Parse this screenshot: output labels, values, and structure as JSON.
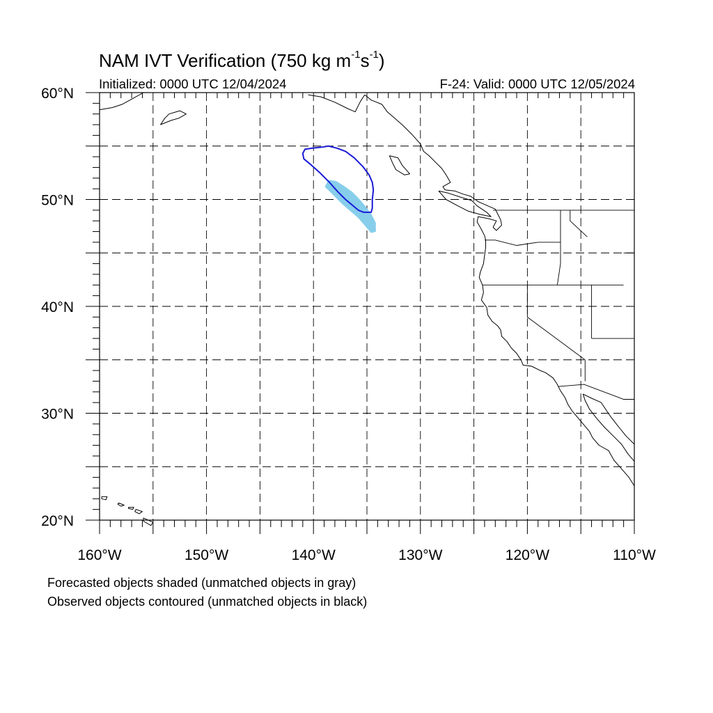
{
  "title": {
    "main": "NAM IVT Verification (750 kg m",
    "exp1": "-1",
    "mid": "s",
    "exp2": "-1",
    "close": ")"
  },
  "subtitle": {
    "left": "Initialized: 0000 UTC 12/04/2024",
    "right": "F-24: Valid: 0000 UTC 12/05/2024"
  },
  "map": {
    "lon_range": [
      -160,
      -110
    ],
    "lat_range": [
      20,
      60
    ],
    "grid_lon_step": 5,
    "grid_lat_step": 5,
    "lon_labels": [
      "160°W",
      "150°W",
      "140°W",
      "130°W",
      "120°W",
      "110°W"
    ],
    "lat_labels": [
      "20°N",
      "30°N",
      "40°N",
      "50°N",
      "60°N"
    ],
    "forecast_fill_color": "#87ceeb",
    "observed_contour_color": "#1a1ad6"
  },
  "notes": [
    "Forecasted objects shaded (unmatched objects in gray)",
    "Observed objects contoured (unmatched objects in black)"
  ],
  "objects": {
    "forecast_shaded": [
      [
        -138.6,
        51.8
      ],
      [
        -137.9,
        51.7
      ],
      [
        -137.1,
        51.2
      ],
      [
        -136.4,
        50.7
      ],
      [
        -135.8,
        50.1
      ],
      [
        -135.2,
        49.4
      ],
      [
        -134.6,
        48.6
      ],
      [
        -134.2,
        47.8
      ],
      [
        -134.2,
        47.0
      ],
      [
        -134.6,
        46.9
      ],
      [
        -135.2,
        47.6
      ],
      [
        -135.8,
        48.3
      ],
      [
        -136.5,
        48.9
      ],
      [
        -137.3,
        49.6
      ],
      [
        -138.2,
        50.5
      ],
      [
        -138.9,
        51.2
      ]
    ],
    "observed_contour": [
      [
        -141.0,
        54.3
      ],
      [
        -140.8,
        54.7
      ],
      [
        -140.1,
        54.8
      ],
      [
        -139.2,
        54.9
      ],
      [
        -138.6,
        55.0
      ],
      [
        -137.8,
        54.8
      ],
      [
        -137.0,
        54.5
      ],
      [
        -136.2,
        53.9
      ],
      [
        -135.4,
        53.1
      ],
      [
        -134.8,
        52.3
      ],
      [
        -134.5,
        51.6
      ],
      [
        -134.4,
        50.9
      ],
      [
        -134.5,
        50.0
      ],
      [
        -134.5,
        49.2
      ],
      [
        -134.6,
        48.8
      ],
      [
        -135.3,
        48.8
      ],
      [
        -135.8,
        49.0
      ],
      [
        -136.4,
        49.5
      ],
      [
        -137.0,
        50.0
      ],
      [
        -137.7,
        50.7
      ],
      [
        -138.5,
        51.6
      ],
      [
        -139.4,
        52.5
      ],
      [
        -140.3,
        53.3
      ],
      [
        -140.9,
        53.8
      ]
    ]
  },
  "geography": {
    "coast_north_america": [
      [
        -135.2,
        59.8
      ],
      [
        -134.6,
        59.3
      ],
      [
        -133.6,
        58.9
      ],
      [
        -133.1,
        58.2
      ],
      [
        -132.4,
        57.6
      ],
      [
        -131.6,
        56.9
      ],
      [
        -130.8,
        56.1
      ],
      [
        -130.0,
        55.2
      ],
      [
        -129.7,
        54.5
      ],
      [
        -129.2,
        54.1
      ],
      [
        -128.6,
        53.5
      ],
      [
        -128.0,
        52.9
      ],
      [
        -127.6,
        52.3
      ],
      [
        -127.2,
        51.6
      ],
      [
        -127.9,
        51.2
      ],
      [
        -127.7,
        50.9
      ],
      [
        -126.8,
        50.8
      ],
      [
        -126.0,
        50.5
      ],
      [
        -125.3,
        50.3
      ],
      [
        -124.6,
        49.8
      ],
      [
        -123.7,
        49.4
      ],
      [
        -123.0,
        49.1
      ],
      [
        -122.8,
        48.7
      ],
      [
        -122.5,
        48.1
      ],
      [
        -122.4,
        47.6
      ],
      [
        -122.9,
        47.1
      ],
      [
        -123.2,
        47.4
      ],
      [
        -122.9,
        48.0
      ],
      [
        -123.6,
        48.2
      ],
      [
        -124.6,
        48.4
      ],
      [
        -124.7,
        47.9
      ],
      [
        -124.3,
        47.2
      ],
      [
        -124.0,
        46.6
      ],
      [
        -123.9,
        46.2
      ],
      [
        -123.9,
        45.5
      ],
      [
        -124.0,
        44.8
      ],
      [
        -124.1,
        44.0
      ],
      [
        -124.4,
        43.2
      ],
      [
        -124.5,
        42.7
      ],
      [
        -124.2,
        42.0
      ],
      [
        -124.1,
        41.3
      ],
      [
        -124.3,
        40.6
      ],
      [
        -123.8,
        39.9
      ],
      [
        -123.7,
        39.2
      ],
      [
        -123.3,
        38.6
      ],
      [
        -122.8,
        38.2
      ],
      [
        -122.5,
        37.8
      ],
      [
        -122.4,
        37.2
      ],
      [
        -121.9,
        36.7
      ],
      [
        -121.5,
        36.1
      ],
      [
        -121.0,
        35.6
      ],
      [
        -120.6,
        35.0
      ],
      [
        -120.4,
        34.5
      ],
      [
        -119.6,
        34.4
      ],
      [
        -118.8,
        34.0
      ],
      [
        -118.3,
        33.8
      ],
      [
        -117.6,
        33.3
      ],
      [
        -117.2,
        32.7
      ],
      [
        -116.9,
        32.1
      ],
      [
        -116.5,
        31.5
      ],
      [
        -116.2,
        30.8
      ],
      [
        -115.8,
        30.2
      ],
      [
        -115.3,
        29.6
      ],
      [
        -114.7,
        28.9
      ],
      [
        -114.2,
        28.3
      ],
      [
        -113.9,
        27.7
      ],
      [
        -113.3,
        27.0
      ],
      [
        -112.4,
        26.5
      ],
      [
        -111.9,
        25.6
      ],
      [
        -111.2,
        24.8
      ],
      [
        -110.5,
        24.0
      ],
      [
        -110.0,
        23.2
      ]
    ],
    "coast_gulf_of_california": [
      [
        -114.8,
        31.8
      ],
      [
        -114.6,
        31.2
      ],
      [
        -114.2,
        30.4
      ],
      [
        -113.5,
        29.5
      ],
      [
        -112.8,
        28.7
      ],
      [
        -112.0,
        27.9
      ],
      [
        -111.2,
        27.1
      ],
      [
        -110.6,
        26.2
      ],
      [
        -110.0,
        25.5
      ]
    ],
    "coast_mainland_mexico": [
      [
        -114.8,
        31.8
      ],
      [
        -114.0,
        31.4
      ],
      [
        -113.1,
        31.0
      ],
      [
        -112.3,
        29.8
      ],
      [
        -111.6,
        28.9
      ],
      [
        -110.8,
        27.9
      ],
      [
        -110.0,
        27.1
      ]
    ],
    "coast_alaska": [
      [
        -140.5,
        59.8
      ],
      [
        -139.3,
        59.6
      ],
      [
        -138.0,
        59.1
      ],
      [
        -136.8,
        58.5
      ],
      [
        -136.1,
        58.2
      ],
      [
        -135.6,
        59.2
      ],
      [
        -135.2,
        59.8
      ]
    ],
    "coast_alaska_west": [
      [
        -160.0,
        58.4
      ],
      [
        -158.8,
        58.6
      ],
      [
        -157.9,
        58.9
      ],
      [
        -156.8,
        59.5
      ],
      [
        -155.9,
        60.0
      ]
    ],
    "coast_kodiak": [
      [
        -153.5,
        58.0
      ],
      [
        -152.5,
        58.3
      ],
      [
        -151.9,
        58.0
      ],
      [
        -152.6,
        57.6
      ],
      [
        -153.3,
        57.4
      ],
      [
        -154.3,
        57.0
      ],
      [
        -153.9,
        57.6
      ],
      [
        -153.5,
        58.0
      ]
    ],
    "coast_vancouver_island": [
      [
        -128.3,
        50.8
      ],
      [
        -127.4,
        50.6
      ],
      [
        -126.2,
        50.2
      ],
      [
        -125.2,
        49.9
      ],
      [
        -124.7,
        49.4
      ],
      [
        -123.8,
        48.8
      ],
      [
        -123.4,
        48.4
      ],
      [
        -124.4,
        48.6
      ],
      [
        -125.5,
        48.9
      ],
      [
        -126.5,
        49.4
      ],
      [
        -127.6,
        50.0
      ],
      [
        -128.3,
        50.8
      ]
    ],
    "coast_haida_gwaii": [
      [
        -132.9,
        54.1
      ],
      [
        -132.1,
        53.9
      ],
      [
        -131.7,
        53.2
      ],
      [
        -131.0,
        52.4
      ],
      [
        -131.5,
        52.3
      ],
      [
        -132.3,
        52.8
      ],
      [
        -132.6,
        53.4
      ],
      [
        -132.9,
        54.1
      ]
    ],
    "hawaii": [
      [
        [
          -159.8,
          22.2
        ],
        [
          -159.3,
          22.2
        ],
        [
          -159.4,
          21.9
        ],
        [
          -159.8,
          22.0
        ]
      ],
      [
        [
          -158.2,
          21.6
        ],
        [
          -157.7,
          21.4
        ],
        [
          -158.0,
          21.3
        ],
        [
          -158.3,
          21.5
        ]
      ],
      [
        [
          -157.3,
          21.2
        ],
        [
          -156.8,
          21.2
        ],
        [
          -156.9,
          21.0
        ],
        [
          -157.3,
          21.1
        ]
      ],
      [
        [
          -156.6,
          21.0
        ],
        [
          -156.0,
          20.8
        ],
        [
          -156.3,
          20.6
        ],
        [
          -156.7,
          20.8
        ]
      ],
      [
        [
          -155.9,
          20.2
        ],
        [
          -155.0,
          19.8
        ],
        [
          -155.2,
          19.5
        ],
        [
          -155.9,
          19.9
        ]
      ]
    ],
    "borders": [
      [
        [
          -123.2,
          49.0
        ],
        [
          -110.0,
          49.0
        ]
      ],
      [
        [
          -124.2,
          42.0
        ],
        [
          -111.0,
          42.0
        ]
      ],
      [
        [
          -124.0,
          46.2
        ],
        [
          -123.0,
          46.2
        ],
        [
          -121.0,
          45.7
        ],
        [
          -119.0,
          46.0
        ],
        [
          -116.9,
          46.0
        ]
      ],
      [
        [
          -116.9,
          49.0
        ],
        [
          -116.9,
          44.0
        ],
        [
          -117.2,
          42.0
        ]
      ],
      [
        [
          -120.0,
          42.0
        ],
        [
          -120.0,
          39.0
        ],
        [
          -114.6,
          35.0
        ],
        [
          -114.6,
          33.0
        ]
      ],
      [
        [
          -114.0,
          42.0
        ],
        [
          -114.0,
          37.0
        ]
      ],
      [
        [
          -114.0,
          37.0
        ],
        [
          -110.0,
          37.0
        ]
      ],
      [
        [
          -117.1,
          32.5
        ],
        [
          -114.7,
          32.7
        ],
        [
          -111.0,
          31.3
        ],
        [
          -110.0,
          31.3
        ]
      ],
      [
        [
          -111.0,
          45.0
        ],
        [
          -110.0,
          45.0
        ]
      ],
      [
        [
          -116.0,
          49.0
        ],
        [
          -116.0,
          48.0
        ],
        [
          -114.4,
          46.5
        ]
      ]
    ]
  }
}
